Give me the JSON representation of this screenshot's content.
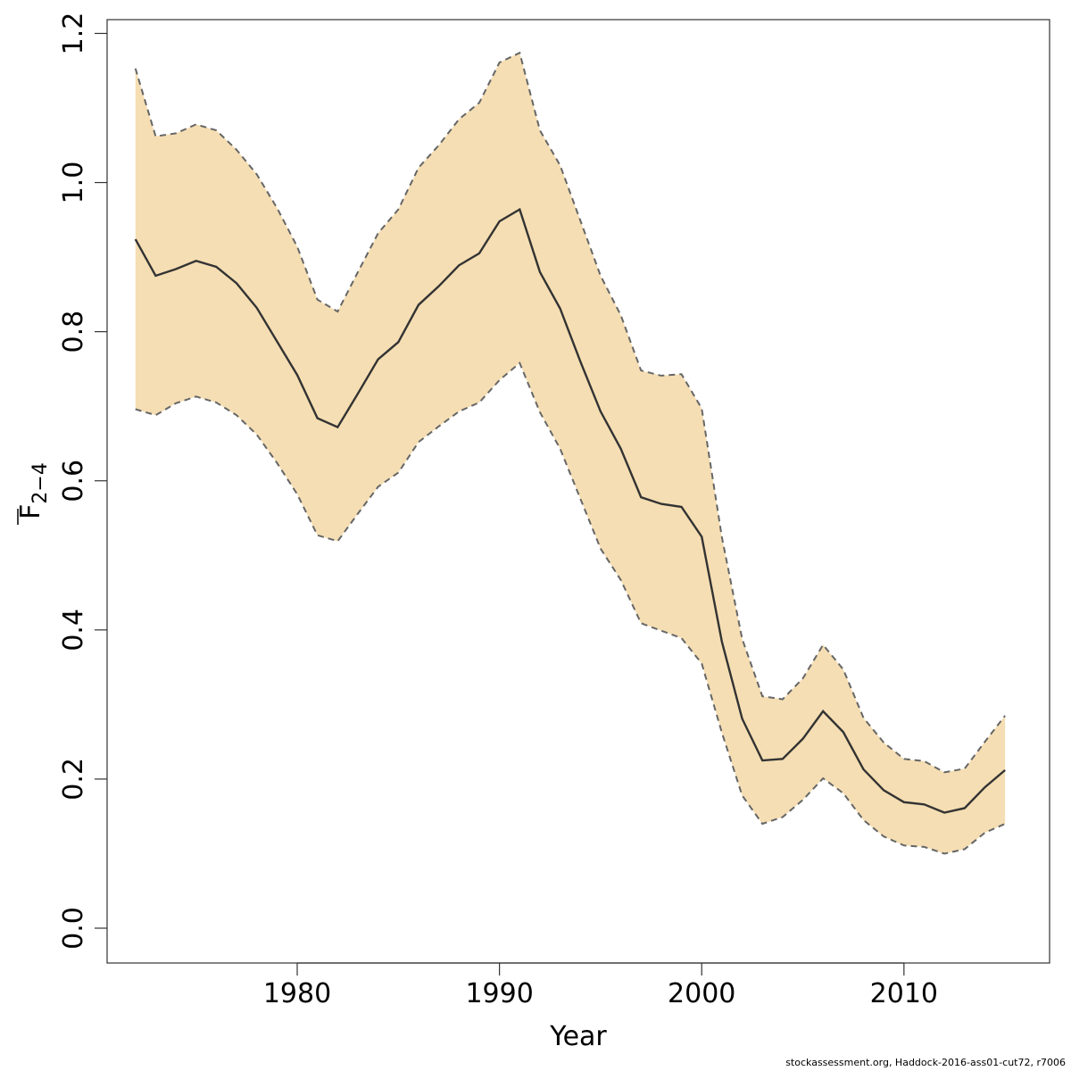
{
  "chart_data": {
    "type": "area",
    "xlabel": "Year",
    "ylabel_main": "F",
    "ylabel_sub": "2−4",
    "xlim": [
      1970.6,
      2017.2
    ],
    "ylim": [
      -0.0467,
      1.2185
    ],
    "xticks": [
      1980,
      1990,
      2000,
      2010
    ],
    "yticks": [
      0.0,
      0.2,
      0.4,
      0.6,
      0.8,
      1.0,
      1.2
    ],
    "ytick_labels": [
      "0.0",
      "0.2",
      "0.4",
      "0.6",
      "0.8",
      "1.0",
      "1.2"
    ],
    "grid": false,
    "colors": {
      "band": "#F5DEB3",
      "line": "#333333",
      "bounds": "#666666"
    },
    "x": [
      1972,
      1973,
      1974,
      1975,
      1976,
      1977,
      1978,
      1979,
      1980,
      1981,
      1982,
      1983,
      1984,
      1985,
      1986,
      1987,
      1988,
      1989,
      1990,
      1991,
      1992,
      1993,
      1994,
      1995,
      1996,
      1997,
      1998,
      1999,
      2000,
      2001,
      2002,
      2003,
      2004,
      2005,
      2006,
      2007,
      2008,
      2009,
      2010,
      2011,
      2012,
      2013,
      2014,
      2015
    ],
    "series": [
      {
        "role": "estimate",
        "values": [
          0.924,
          0.875,
          0.884,
          0.895,
          0.887,
          0.865,
          0.832,
          0.787,
          0.742,
          0.684,
          0.672,
          0.717,
          0.763,
          0.786,
          0.836,
          0.861,
          0.889,
          0.905,
          0.948,
          0.964,
          0.88,
          0.831,
          0.76,
          0.693,
          0.643,
          0.578,
          0.569,
          0.565,
          0.525,
          0.384,
          0.281,
          0.225,
          0.227,
          0.254,
          0.291,
          0.263,
          0.213,
          0.185,
          0.169,
          0.166,
          0.155,
          0.161,
          0.189,
          0.212
        ]
      },
      {
        "role": "upper",
        "values": [
          1.153,
          1.062,
          1.066,
          1.078,
          1.07,
          1.044,
          1.011,
          0.966,
          0.914,
          0.843,
          0.827,
          0.88,
          0.932,
          0.964,
          1.02,
          1.05,
          1.085,
          1.107,
          1.161,
          1.174,
          1.07,
          1.023,
          0.949,
          0.875,
          0.822,
          0.748,
          0.741,
          0.743,
          0.697,
          0.524,
          0.388,
          0.311,
          0.307,
          0.335,
          0.38,
          0.347,
          0.282,
          0.249,
          0.227,
          0.224,
          0.209,
          0.214,
          0.25,
          0.285
        ]
      },
      {
        "role": "lower",
        "values": [
          0.696,
          0.688,
          0.704,
          0.713,
          0.705,
          0.688,
          0.662,
          0.624,
          0.582,
          0.527,
          0.519,
          0.556,
          0.592,
          0.611,
          0.652,
          0.673,
          0.693,
          0.705,
          0.735,
          0.758,
          0.692,
          0.643,
          0.576,
          0.509,
          0.467,
          0.409,
          0.399,
          0.389,
          0.355,
          0.262,
          0.178,
          0.14,
          0.149,
          0.172,
          0.201,
          0.181,
          0.145,
          0.123,
          0.111,
          0.109,
          0.1,
          0.106,
          0.128,
          0.14
        ]
      }
    ]
  },
  "footer": "stockassessment.org, Haddock-2016-ass01-cut72, r7006"
}
